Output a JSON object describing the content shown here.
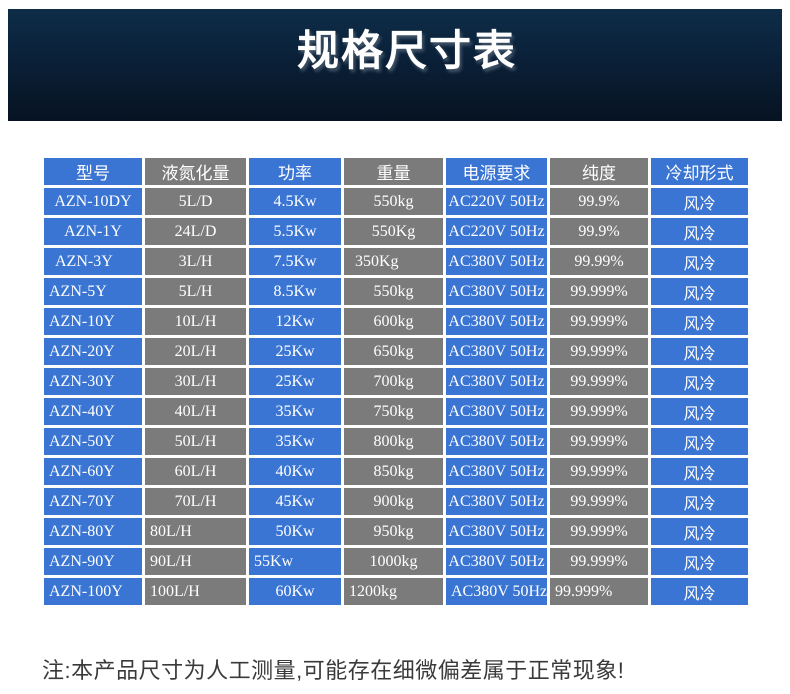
{
  "banner": {
    "title": "规格尺寸表"
  },
  "table": {
    "columns": [
      {
        "label": "型号",
        "color": "blue"
      },
      {
        "label": "液氮化量",
        "color": "gray"
      },
      {
        "label": "功率",
        "color": "blue"
      },
      {
        "label": "重量",
        "color": "gray"
      },
      {
        "label": "电源要求",
        "color": "blue"
      },
      {
        "label": "纯度",
        "color": "gray"
      },
      {
        "label": "冷却形式",
        "color": "blue"
      }
    ],
    "rows": [
      {
        "cells": [
          "AZN-10DY",
          "5L/D",
          "4.5Kw",
          "550kg",
          "AC220V 50Hz",
          "99.9%",
          "风冷"
        ],
        "align": [
          "c",
          "c",
          "c",
          "c",
          "c",
          "c",
          "c"
        ]
      },
      {
        "cells": [
          "AZN-1Y",
          "24L/D",
          "5.5Kw",
          "550Kg",
          "AC220V 50Hz",
          "99.9%",
          "风冷"
        ],
        "align": [
          "c",
          "c",
          "c",
          "c",
          "c",
          "c",
          "c"
        ]
      },
      {
        "cells": [
          "AZN-3Y",
          "3L/H",
          "7.5Kw",
          "350Kg",
          "AC380V 50Hz",
          "99.99%",
          "风冷"
        ],
        "align": [
          "li",
          "c",
          "c",
          "li",
          "c",
          "c",
          "c"
        ]
      },
      {
        "cells": [
          "AZN-5Y",
          "5L/H",
          "8.5Kw",
          "550kg",
          "AC380V 50Hz",
          "99.999%",
          "风冷"
        ],
        "align": [
          "l",
          "c",
          "c",
          "c",
          "c",
          "c",
          "c"
        ]
      },
      {
        "cells": [
          "AZN-10Y",
          "10L/H",
          "12Kw",
          "600kg",
          "AC380V 50Hz",
          "99.999%",
          "风冷"
        ],
        "align": [
          "l",
          "c",
          "c",
          "c",
          "c",
          "c",
          "c"
        ]
      },
      {
        "cells": [
          "AZN-20Y",
          "20L/H",
          "25Kw",
          "650kg",
          "AC380V 50Hz",
          "99.999%",
          "风冷"
        ],
        "align": [
          "l",
          "c",
          "c",
          "c",
          "c",
          "c",
          "c"
        ]
      },
      {
        "cells": [
          "AZN-30Y",
          "30L/H",
          "25Kw",
          "700kg",
          "AC380V 50Hz",
          "99.999%",
          "风冷"
        ],
        "align": [
          "l",
          "c",
          "c",
          "c",
          "c",
          "c",
          "c"
        ]
      },
      {
        "cells": [
          "AZN-40Y",
          "40L/H",
          "35Kw",
          "750kg",
          "AC380V 50Hz",
          "99.999%",
          "风冷"
        ],
        "align": [
          "l",
          "c",
          "c",
          "c",
          "c",
          "c",
          "c"
        ]
      },
      {
        "cells": [
          "AZN-50Y",
          "50L/H",
          "35Kw",
          "800kg",
          "AC380V 50Hz",
          "99.999%",
          "风冷"
        ],
        "align": [
          "l",
          "c",
          "c",
          "c",
          "c",
          "c",
          "c"
        ]
      },
      {
        "cells": [
          "AZN-60Y",
          "60L/H",
          "40Kw",
          "850kg",
          "AC380V 50Hz",
          "99.999%",
          "风冷"
        ],
        "align": [
          "l",
          "c",
          "c",
          "c",
          "c",
          "c",
          "c"
        ]
      },
      {
        "cells": [
          "AZN-70Y",
          "70L/H",
          "45Kw",
          "900kg",
          "AC380V 50Hz",
          "99.999%",
          "风冷"
        ],
        "align": [
          "l",
          "c",
          "c",
          "c",
          "c",
          "c",
          "c"
        ]
      },
      {
        "cells": [
          "AZN-80Y",
          "80L/H",
          "50Kw",
          "950kg",
          "AC380V 50Hz",
          "99.999%",
          "风冷"
        ],
        "align": [
          "l",
          "l",
          "c",
          "c",
          "c",
          "c",
          "c"
        ]
      },
      {
        "cells": [
          "AZN-90Y",
          "90L/H",
          "55Kw",
          "1000kg",
          "AC380V 50Hz",
          "99.999%",
          "风冷"
        ],
        "align": [
          "l",
          "l",
          "l",
          "c",
          "c",
          "c",
          "c"
        ]
      },
      {
        "cells": [
          "AZN-100Y",
          "100L/H",
          "60Kw",
          "1200kg",
          "AC380V 50Hz",
          "99.999%",
          "风冷"
        ],
        "align": [
          "l",
          "l",
          "c",
          "l",
          "l",
          "l",
          "c"
        ]
      }
    ]
  },
  "footnote": {
    "text": "注:本产品尺寸为人工测量,可能存在细微偏差属于正常现象!"
  },
  "colors": {
    "cell_blue": "#3a75d4",
    "cell_gray": "#7b7b7b",
    "banner_top": "#0e2d48",
    "banner_bottom": "#071322",
    "table_text": "#ffffff",
    "note_text": "#3a3a3a"
  }
}
